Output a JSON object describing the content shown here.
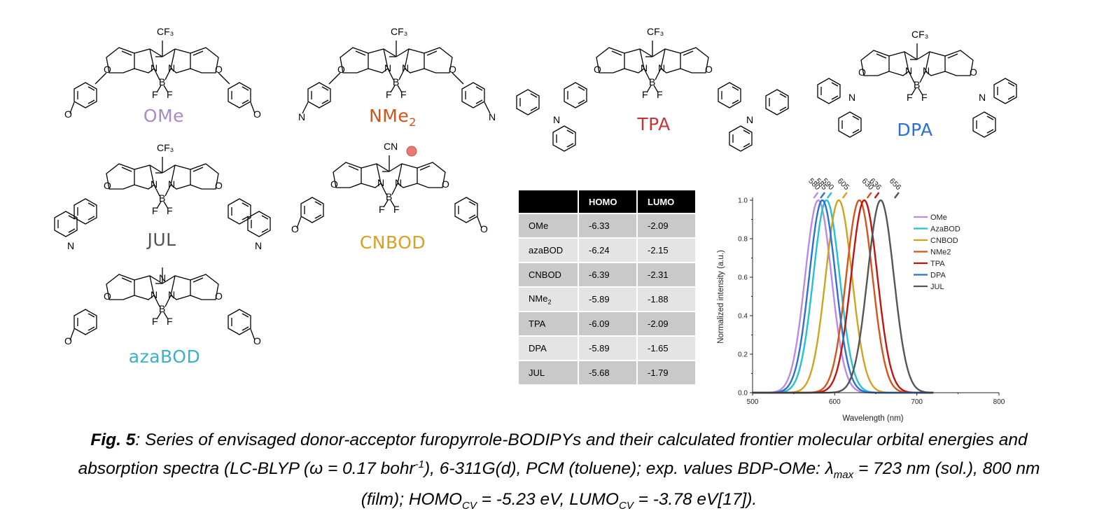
{
  "molecules": {
    "ome": {
      "name": "OMe",
      "color": "#a58cc4"
    },
    "nme2": {
      "name_main": "NMe",
      "name_sub": "2",
      "color": "#d0551c"
    },
    "tpa": {
      "name": "TPA",
      "color": "#c9343b"
    },
    "dpa": {
      "name": "DPA",
      "color": "#2e6fd2"
    },
    "jul": {
      "name": "JUL",
      "color": "#555555"
    },
    "cnbod": {
      "name": "CNBOD",
      "color": "#d9a11c"
    },
    "azabod": {
      "name": "azaBOD",
      "color": "#3bb0c8"
    }
  },
  "atoms": {
    "cf3": "CF₃",
    "cn": "CN",
    "n": "N",
    "b": "B",
    "f": "F",
    "o": "O"
  },
  "table": {
    "headers": [
      "",
      "HOMO",
      "LUMO"
    ],
    "rows": [
      {
        "name": "OMe",
        "homo": "-6.33",
        "lumo": "-2.09"
      },
      {
        "name": "azaBOD",
        "homo": "-6.24",
        "lumo": "-2.15"
      },
      {
        "name": "CNBOD",
        "homo": "-6.39",
        "lumo": "-2.31"
      },
      {
        "name_main": "NMe",
        "name_sub": "2",
        "homo": "-5.89",
        "lumo": "-1.88"
      },
      {
        "name": "TPA",
        "homo": "-6.09",
        "lumo": "-2.09"
      },
      {
        "name": "DPA",
        "homo": "-5.89",
        "lumo": "-1.65"
      },
      {
        "name": "JUL",
        "homo": "-5.68",
        "lumo": "-1.79"
      }
    ]
  },
  "chart_data": {
    "type": "line",
    "xlabel": "Wavelength (nm)",
    "ylabel": "Normalized intensity (a.u.)",
    "xlim": [
      500,
      800
    ],
    "ylim": [
      0.0,
      1.0
    ],
    "x_ticks": [
      "500",
      "600",
      "700",
      "800"
    ],
    "y_ticks": [
      "0.0",
      "0.2",
      "0.4",
      "0.6",
      "0.8",
      "1.0"
    ],
    "legend_position": "top-right",
    "series": [
      {
        "name": "OMe",
        "peak": 580,
        "color": "#b98be6"
      },
      {
        "name": "AzaBOD",
        "peak": 590,
        "color": "#23c2d0"
      },
      {
        "name": "CNBOD",
        "peak": 605,
        "color": "#d1a21e"
      },
      {
        "name": "NMe2",
        "peak": 630,
        "color": "#d4541a"
      },
      {
        "name": "TPA",
        "peak": 636,
        "color": "#c01414"
      },
      {
        "name": "DPA",
        "peak": 585,
        "color": "#2e6fd2"
      },
      {
        "name": "JUL",
        "peak": 656,
        "color": "#555555"
      }
    ],
    "peak_labels": [
      "580",
      "585",
      "590",
      "605",
      "630",
      "636",
      "656"
    ]
  },
  "caption": {
    "fig": "Fig. 5",
    "line1": ": Series of envisaged donor-acceptor furopyrrole-BODIPYs and their calculated frontier molecular orbital energies and",
    "line2a": "absorption spectra (LC-BLYP (ω = 0.17 bohr",
    "line2sup": "-1",
    "line2b": "), 6-311G(d), PCM (toluene); exp. values BDP-OMe: λ",
    "line2sub": "max",
    "line2c": " = 723 nm (sol.), 800 nm",
    "line3a": "(film); HOMO",
    "line3sub1": "CV",
    "line3b": " = -5.23 eV, LUMO",
    "line3sub2": "CV",
    "line3c": " = -3.78 eV[17])."
  }
}
